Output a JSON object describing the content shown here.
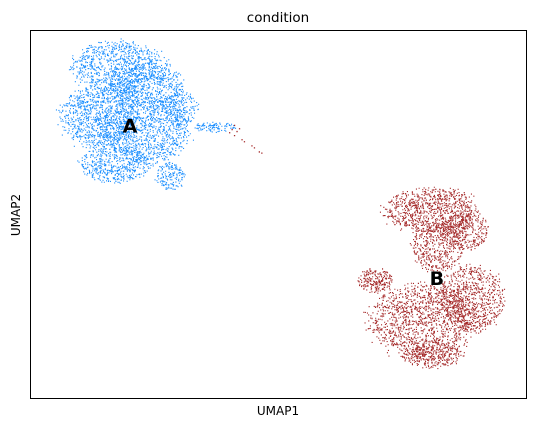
{
  "chart_data": {
    "type": "scatter",
    "title": "condition",
    "xlabel": "UMAP1",
    "ylabel": "UMAP2",
    "xticks": [],
    "yticks": [],
    "grid": false,
    "legend": "on data",
    "series": [
      {
        "name": "A",
        "color": "#1e90ff",
        "blobs": [
          {
            "cx": 1.8,
            "cy": 8.1,
            "rx": 0.95,
            "ry": 0.65,
            "n": 900
          },
          {
            "cx": 2.3,
            "cy": 7.7,
            "rx": 0.75,
            "ry": 0.55,
            "n": 600
          },
          {
            "cx": 1.35,
            "cy": 6.9,
            "rx": 0.75,
            "ry": 0.75,
            "n": 900
          },
          {
            "cx": 2.3,
            "cy": 6.6,
            "rx": 0.9,
            "ry": 0.8,
            "n": 1100
          },
          {
            "cx": 1.7,
            "cy": 5.75,
            "rx": 0.7,
            "ry": 0.45,
            "n": 500
          },
          {
            "cx": 3.0,
            "cy": 7.1,
            "rx": 0.35,
            "ry": 0.45,
            "n": 220
          },
          {
            "cx": 2.8,
            "cy": 5.45,
            "rx": 0.28,
            "ry": 0.35,
            "n": 160
          },
          {
            "cx": 3.7,
            "cy": 6.65,
            "rx": 0.45,
            "ry": 0.12,
            "n": 100
          }
        ]
      },
      {
        "name": "B",
        "color": "#a52a2a",
        "blobs": [
          {
            "cx": 8.1,
            "cy": 4.6,
            "rx": 0.95,
            "ry": 0.55,
            "n": 900
          },
          {
            "cx": 8.75,
            "cy": 4.1,
            "rx": 0.5,
            "ry": 0.45,
            "n": 350
          },
          {
            "cx": 8.2,
            "cy": 3.7,
            "rx": 0.5,
            "ry": 0.6,
            "n": 400
          },
          {
            "cx": 6.95,
            "cy": 2.9,
            "rx": 0.35,
            "ry": 0.3,
            "n": 220
          },
          {
            "cx": 7.9,
            "cy": 1.9,
            "rx": 1.05,
            "ry": 0.9,
            "n": 1300
          },
          {
            "cx": 8.9,
            "cy": 2.45,
            "rx": 0.65,
            "ry": 0.8,
            "n": 800
          },
          {
            "cx": 8.1,
            "cy": 1.05,
            "rx": 0.6,
            "ry": 0.3,
            "n": 300
          }
        ],
        "stray_points": [
          [
            4.05,
            6.6
          ],
          [
            4.15,
            6.55
          ],
          [
            4.1,
            6.45
          ],
          [
            4.25,
            6.35
          ],
          [
            4.3,
            6.3
          ],
          [
            4.45,
            6.2
          ],
          [
            4.5,
            6.15
          ],
          [
            4.6,
            6.05
          ],
          [
            4.65,
            6.02
          ],
          [
            4.1,
            6.7
          ],
          [
            4.2,
            6.62
          ],
          [
            4.0,
            6.52
          ]
        ]
      }
    ],
    "cluster_labels": [
      {
        "text": "A",
        "x": 2.0,
        "y": 6.65
      },
      {
        "text": "B",
        "x": 8.2,
        "y": 2.9
      }
    ],
    "xlim": [
      0,
      10
    ],
    "ylim": [
      0,
      9
    ]
  }
}
